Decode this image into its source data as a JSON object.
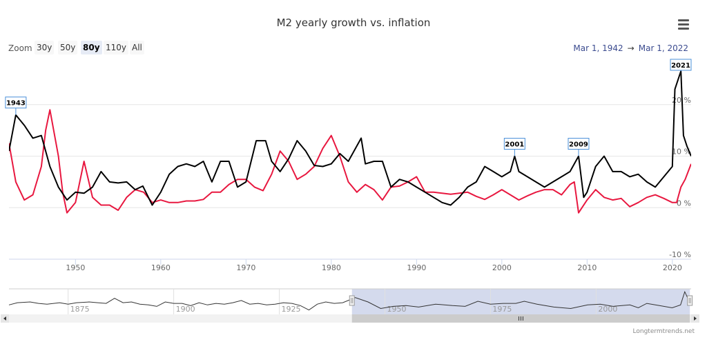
{
  "title": "M2 yearly growth vs. inflation",
  "zoom": {
    "label": "Zoom",
    "buttons": [
      "30y",
      "50y",
      "80y",
      "110y",
      "All"
    ],
    "active": "80y"
  },
  "range": {
    "from": "Mar 1, 1942",
    "arrow": "→",
    "to": "Mar 1, 2022"
  },
  "credit": "Longtermtrends.net",
  "colors": {
    "m2": "#000000",
    "inflation": "#e8173f",
    "navigator_mask": "#cdd4ea",
    "flag_border": "#4a90d9"
  },
  "chart_data": {
    "type": "line",
    "x_range": [
      1942.2,
      2022.2
    ],
    "ylim": [
      -10,
      28
    ],
    "y_ticks": [
      {
        "value": -10,
        "label": "-10 %"
      },
      {
        "value": 0,
        "label": "0 %"
      },
      {
        "value": 10,
        "label": "10 %"
      },
      {
        "value": 20,
        "label": "20 %"
      }
    ],
    "x_ticks": [
      {
        "value": 1950,
        "label": "1950"
      },
      {
        "value": 1960,
        "label": "1960"
      },
      {
        "value": 1970,
        "label": "1970"
      },
      {
        "value": 1980,
        "label": "1980"
      },
      {
        "value": 1990,
        "label": "1990"
      },
      {
        "value": 2000,
        "label": "2000"
      },
      {
        "value": 2010,
        "label": "2010"
      },
      {
        "value": 2020,
        "label": "2020"
      }
    ],
    "grid": true,
    "legend": "none",
    "series": [
      {
        "key": "m2",
        "points": [
          [
            1942.2,
            11
          ],
          [
            1943,
            18
          ],
          [
            1944,
            16
          ],
          [
            1945,
            13.5
          ],
          [
            1946,
            14
          ],
          [
            1947,
            8
          ],
          [
            1948,
            4
          ],
          [
            1949,
            1.5
          ],
          [
            1950,
            3
          ],
          [
            1951,
            2.8
          ],
          [
            1952,
            4
          ],
          [
            1953,
            7
          ],
          [
            1954,
            5
          ],
          [
            1955,
            4.8
          ],
          [
            1956,
            5
          ],
          [
            1957,
            3.5
          ],
          [
            1957.9,
            4.2
          ],
          [
            1959,
            0.5
          ],
          [
            1960,
            3
          ],
          [
            1961,
            6.5
          ],
          [
            1962,
            8
          ],
          [
            1963,
            8.5
          ],
          [
            1964,
            8
          ],
          [
            1965,
            9
          ],
          [
            1966,
            5
          ],
          [
            1967,
            9
          ],
          [
            1968,
            9
          ],
          [
            1969,
            4
          ],
          [
            1970,
            5
          ],
          [
            1971.2,
            13
          ],
          [
            1972.3,
            13
          ],
          [
            1973,
            9
          ],
          [
            1974,
            7
          ],
          [
            1975,
            9.5
          ],
          [
            1976,
            13
          ],
          [
            1977,
            11
          ],
          [
            1978,
            8.2
          ],
          [
            1979,
            8
          ],
          [
            1980,
            8.5
          ],
          [
            1981,
            10.5
          ],
          [
            1982,
            9
          ],
          [
            1983.5,
            13.5
          ],
          [
            1984,
            8.5
          ],
          [
            1985,
            9
          ],
          [
            1986,
            9
          ],
          [
            1987,
            4
          ],
          [
            1988,
            5.5
          ],
          [
            1989,
            5
          ],
          [
            1990,
            4
          ],
          [
            1991,
            3
          ],
          [
            1992,
            2
          ],
          [
            1993,
            1
          ],
          [
            1994,
            0.5
          ],
          [
            1995,
            2
          ],
          [
            1996,
            4
          ],
          [
            1997,
            5
          ],
          [
            1998,
            8
          ],
          [
            1999,
            7
          ],
          [
            2000,
            6
          ],
          [
            2001,
            7
          ],
          [
            2001.5,
            10
          ],
          [
            2002,
            7
          ],
          [
            2003,
            6
          ],
          [
            2004,
            5
          ],
          [
            2005,
            4
          ],
          [
            2006,
            5
          ],
          [
            2007,
            6
          ],
          [
            2008,
            7
          ],
          [
            2009,
            10
          ],
          [
            2009.6,
            2
          ],
          [
            2010,
            3
          ],
          [
            2011,
            8
          ],
          [
            2012,
            10
          ],
          [
            2013,
            7
          ],
          [
            2014,
            7
          ],
          [
            2015,
            6
          ],
          [
            2016,
            6.5
          ],
          [
            2017,
            5
          ],
          [
            2018,
            4
          ],
          [
            2019,
            6
          ],
          [
            2020,
            8
          ],
          [
            2020.3,
            23
          ],
          [
            2021,
            26.5
          ],
          [
            2021.3,
            14
          ],
          [
            2021.7,
            12
          ],
          [
            2022.2,
            10
          ]
        ]
      },
      {
        "key": "inflation",
        "points": [
          [
            1942.2,
            12.5
          ],
          [
            1943,
            5
          ],
          [
            1944,
            1.5
          ],
          [
            1945,
            2.5
          ],
          [
            1946,
            8
          ],
          [
            1946.5,
            15
          ],
          [
            1947,
            19
          ],
          [
            1948,
            10
          ],
          [
            1948.5,
            3
          ],
          [
            1949,
            -1
          ],
          [
            1950,
            1
          ],
          [
            1951,
            9
          ],
          [
            1952,
            2
          ],
          [
            1953,
            0.5
          ],
          [
            1954,
            0.5
          ],
          [
            1955,
            -0.5
          ],
          [
            1956,
            2
          ],
          [
            1957,
            3.5
          ],
          [
            1958,
            3
          ],
          [
            1959,
            1
          ],
          [
            1960,
            1.5
          ],
          [
            1961,
            1
          ],
          [
            1962,
            1
          ],
          [
            1963,
            1.3
          ],
          [
            1964,
            1.3
          ],
          [
            1965,
            1.6
          ],
          [
            1966,
            3
          ],
          [
            1967,
            3
          ],
          [
            1968,
            4.5
          ],
          [
            1969,
            5.5
          ],
          [
            1970,
            5.5
          ],
          [
            1971,
            4
          ],
          [
            1972,
            3.3
          ],
          [
            1973,
            6.5
          ],
          [
            1974,
            11
          ],
          [
            1975,
            9
          ],
          [
            1976,
            5.5
          ],
          [
            1977,
            6.5
          ],
          [
            1978,
            8
          ],
          [
            1979,
            11.5
          ],
          [
            1980,
            14
          ],
          [
            1981,
            10
          ],
          [
            1982,
            5
          ],
          [
            1983,
            3
          ],
          [
            1984,
            4.5
          ],
          [
            1985,
            3.5
          ],
          [
            1986,
            1.5
          ],
          [
            1987,
            4
          ],
          [
            1988,
            4.2
          ],
          [
            1989,
            5
          ],
          [
            1990,
            6
          ],
          [
            1991,
            3
          ],
          [
            1992,
            3
          ],
          [
            1993,
            2.8
          ],
          [
            1994,
            2.6
          ],
          [
            1995,
            2.8
          ],
          [
            1996,
            3
          ],
          [
            1997,
            2.2
          ],
          [
            1998,
            1.6
          ],
          [
            1999,
            2.5
          ],
          [
            2000,
            3.5
          ],
          [
            2001,
            2.5
          ],
          [
            2002,
            1.5
          ],
          [
            2003,
            2.3
          ],
          [
            2004,
            3
          ],
          [
            2005,
            3.5
          ],
          [
            2006,
            3.5
          ],
          [
            2007,
            2.5
          ],
          [
            2008,
            4.5
          ],
          [
            2008.5,
            5
          ],
          [
            2009,
            -1
          ],
          [
            2010,
            1.5
          ],
          [
            2011,
            3.5
          ],
          [
            2012,
            2
          ],
          [
            2013,
            1.5
          ],
          [
            2014,
            1.8
          ],
          [
            2015,
            0.2
          ],
          [
            2016,
            1
          ],
          [
            2017,
            2
          ],
          [
            2018,
            2.5
          ],
          [
            2019,
            1.8
          ],
          [
            2020,
            1
          ],
          [
            2020.5,
            1
          ],
          [
            2021,
            4
          ],
          [
            2021.5,
            5.5
          ],
          [
            2022.2,
            8.5
          ]
        ]
      }
    ],
    "flags": [
      {
        "label": "1943",
        "x": 1943,
        "y": 18
      },
      {
        "label": "2001",
        "x": 2001.5,
        "y": 10
      },
      {
        "label": "2009",
        "x": 2009,
        "y": 10
      },
      {
        "label": "2021",
        "x": 2021,
        "y": 26.5
      }
    ],
    "navigator": {
      "x_range": [
        1861,
        2022.5
      ],
      "ylim": [
        -5,
        30
      ],
      "selected_range": [
        1942.2,
        2022.2
      ],
      "ticks": [
        {
          "value": 1875,
          "label": "1875"
        },
        {
          "value": 1900,
          "label": "1900"
        },
        {
          "value": 1925,
          "label": "1925"
        },
        {
          "value": 1950,
          "label": "1950"
        },
        {
          "value": 1975,
          "label": "1975"
        },
        {
          "value": 2000,
          "label": "2000"
        }
      ],
      "points": [
        [
          1861,
          8
        ],
        [
          1863,
          11
        ],
        [
          1866,
          12
        ],
        [
          1868,
          10
        ],
        [
          1870,
          9
        ],
        [
          1873,
          11
        ],
        [
          1875,
          9
        ],
        [
          1877,
          11
        ],
        [
          1880,
          12
        ],
        [
          1882,
          11
        ],
        [
          1884,
          10
        ],
        [
          1886,
          17
        ],
        [
          1888,
          11
        ],
        [
          1890,
          12
        ],
        [
          1892,
          9
        ],
        [
          1894,
          8
        ],
        [
          1896,
          6
        ],
        [
          1898,
          12
        ],
        [
          1900,
          10
        ],
        [
          1902,
          10
        ],
        [
          1904,
          7
        ],
        [
          1906,
          11
        ],
        [
          1908,
          8
        ],
        [
          1910,
          10
        ],
        [
          1912,
          9
        ],
        [
          1914,
          11
        ],
        [
          1916,
          14
        ],
        [
          1918,
          9
        ],
        [
          1920,
          10
        ],
        [
          1922,
          8
        ],
        [
          1924,
          9
        ],
        [
          1926,
          11
        ],
        [
          1928,
          10
        ],
        [
          1930,
          7
        ],
        [
          1932,
          1
        ],
        [
          1934,
          9
        ],
        [
          1936,
          12
        ],
        [
          1938,
          10
        ],
        [
          1940,
          11
        ],
        [
          1943,
          18
        ],
        [
          1946,
          12
        ],
        [
          1949,
          3
        ],
        [
          1952,
          6
        ],
        [
          1955,
          7
        ],
        [
          1958,
          5
        ],
        [
          1962,
          9
        ],
        [
          1966,
          7
        ],
        [
          1969,
          6
        ],
        [
          1972,
          13
        ],
        [
          1975,
          9
        ],
        [
          1978,
          10
        ],
        [
          1981,
          10
        ],
        [
          1983,
          13
        ],
        [
          1986,
          9
        ],
        [
          1990,
          5
        ],
        [
          1994,
          3
        ],
        [
          1998,
          8
        ],
        [
          2001,
          9
        ],
        [
          2004,
          6
        ],
        [
          2008,
          8
        ],
        [
          2010,
          4
        ],
        [
          2012,
          10
        ],
        [
          2015,
          7
        ],
        [
          2018,
          4
        ],
        [
          2020,
          8
        ],
        [
          2021,
          26
        ],
        [
          2022.2,
          11
        ]
      ]
    }
  }
}
